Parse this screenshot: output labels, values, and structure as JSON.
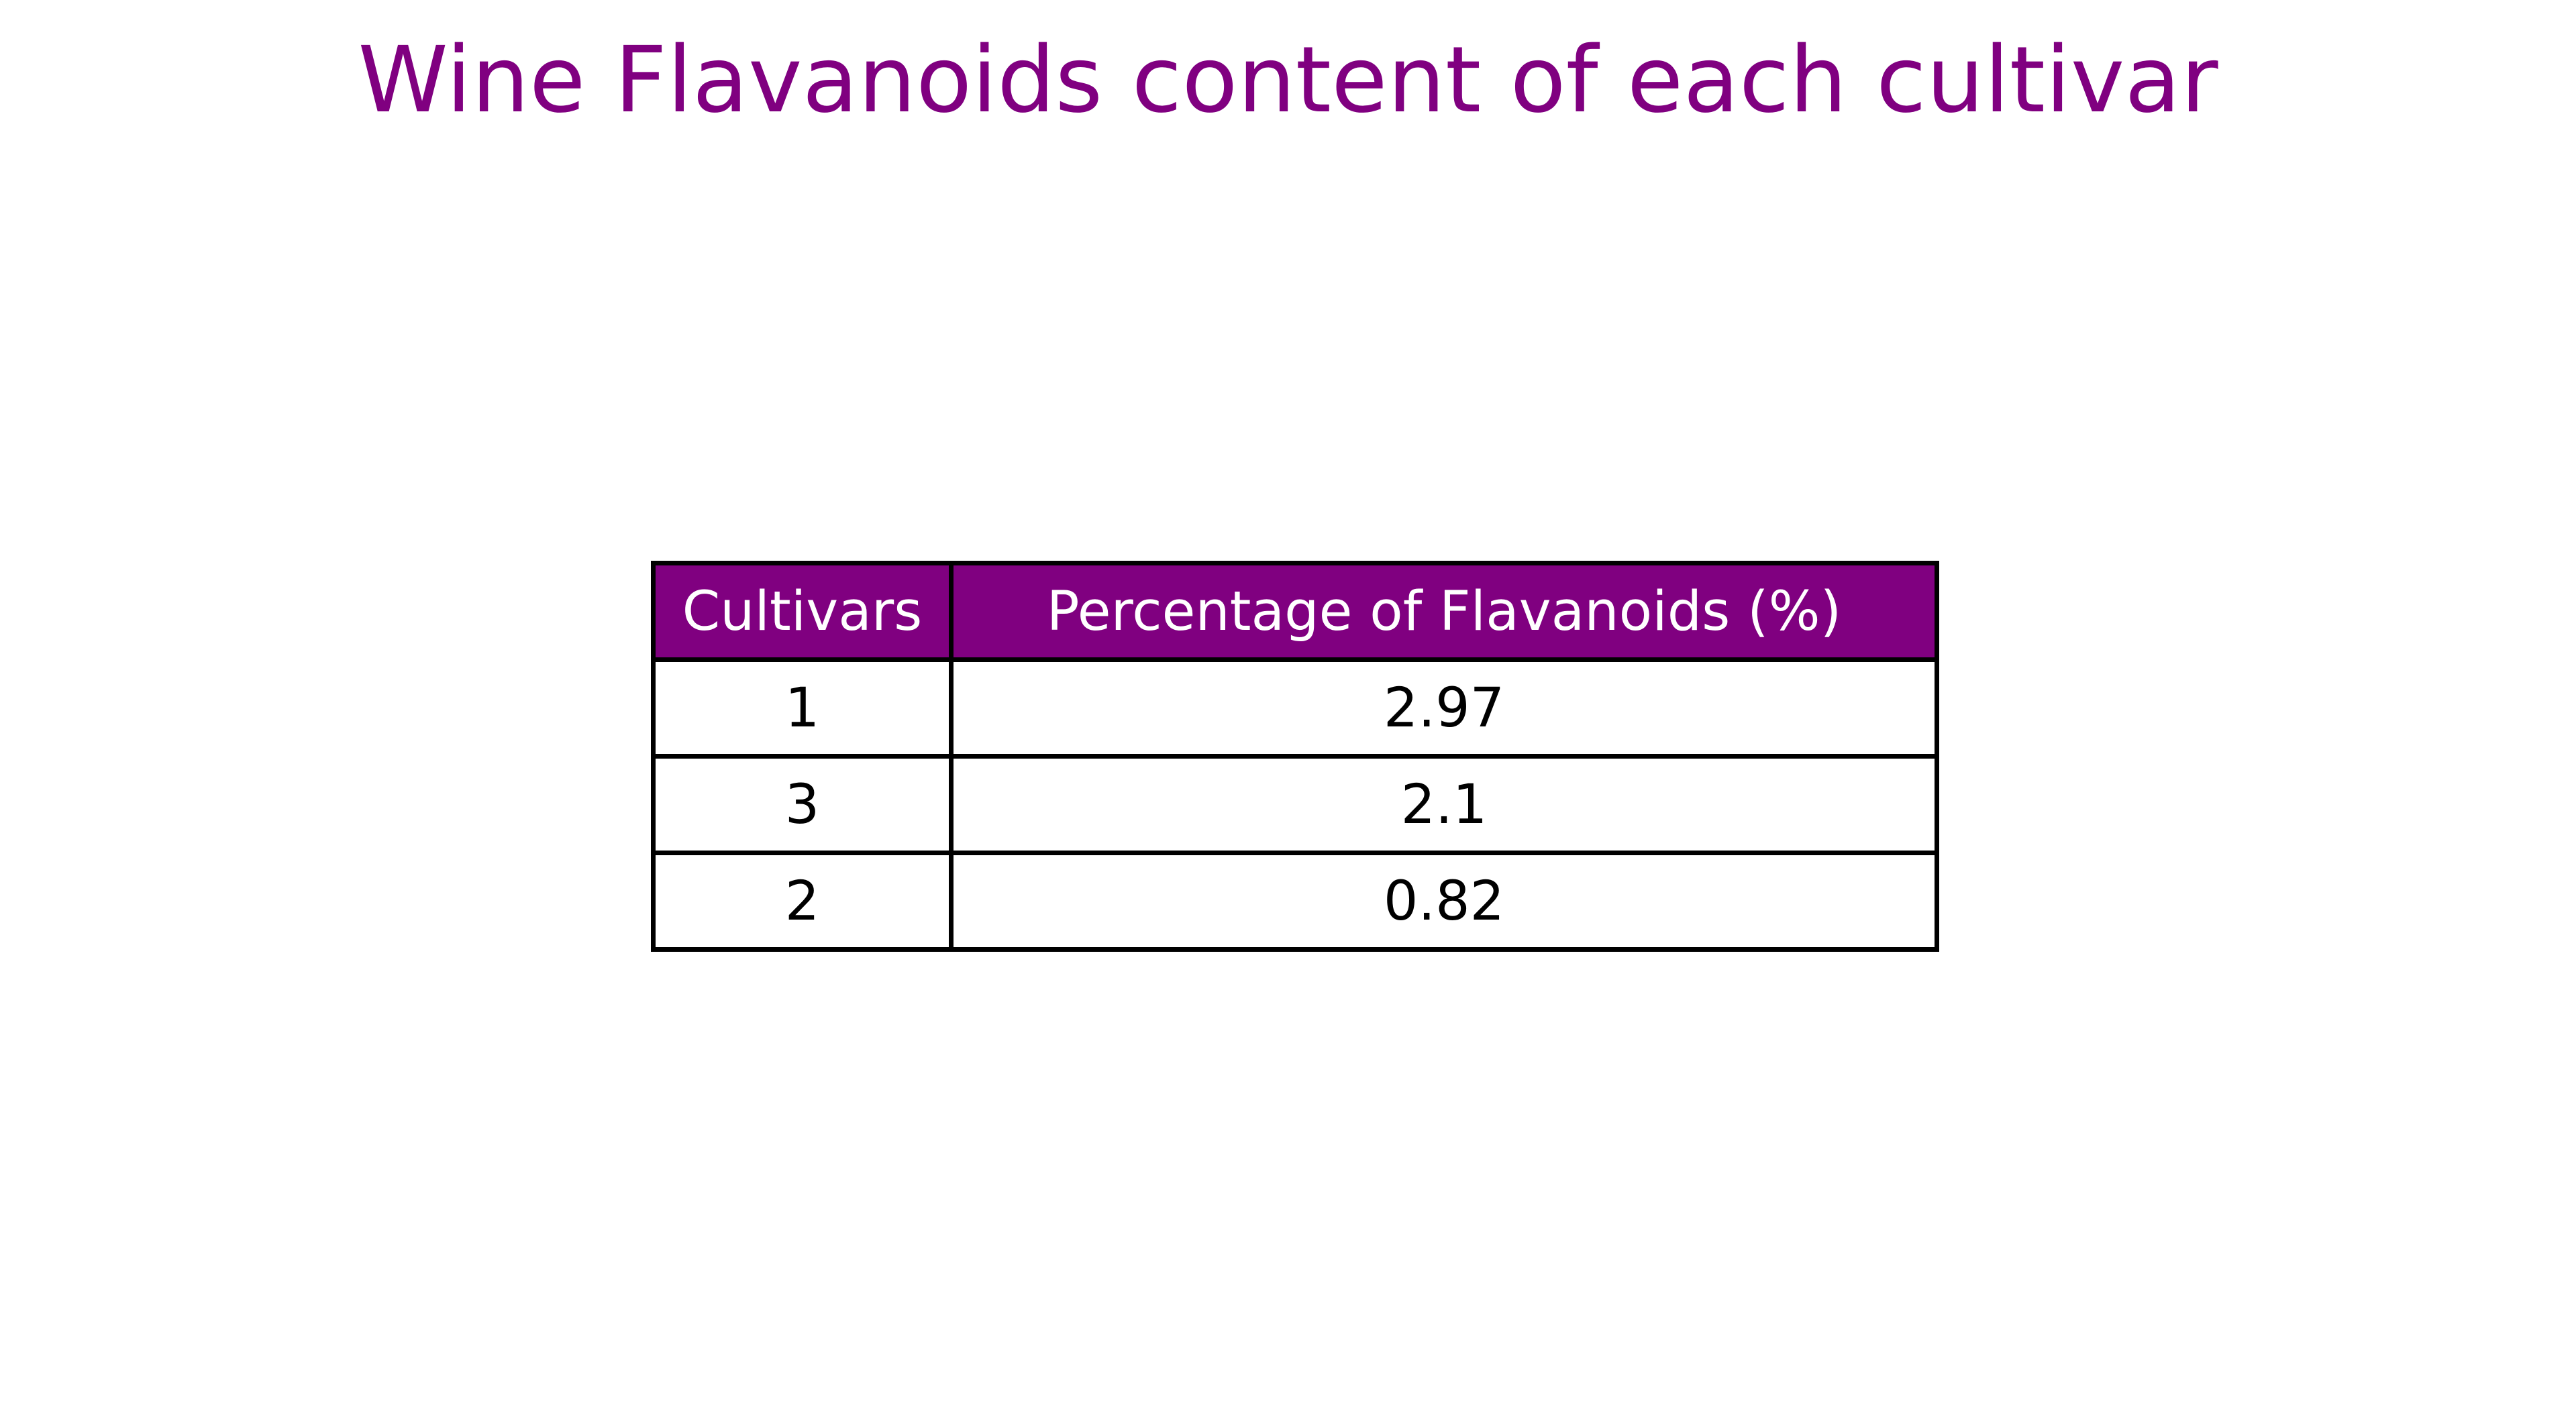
{
  "colors": {
    "accent": "#800080",
    "header_text": "#ffffff",
    "cell_text": "#000000",
    "border": "#000000",
    "background": "#ffffff"
  },
  "chart_data": {
    "type": "table",
    "title": "Wine Flavanoids content of each cultivar",
    "columns": [
      "Cultivars",
      "Percentage of Flavanoids (%)"
    ],
    "rows": [
      [
        "1",
        "2.97"
      ],
      [
        "3",
        "2.1"
      ],
      [
        "2",
        "0.82"
      ]
    ]
  }
}
